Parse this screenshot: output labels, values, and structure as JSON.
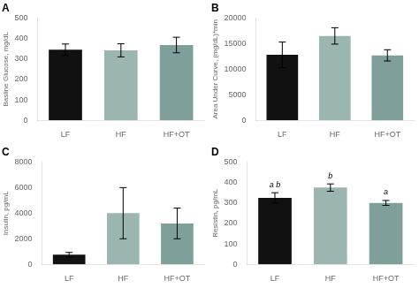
{
  "chart_data": [
    {
      "type": "bar",
      "title": "A",
      "ylabel": "Basline Glucose, mg/dL",
      "categories": [
        "LF",
        "HF",
        "HF+OT"
      ],
      "values": [
        345,
        342,
        368
      ],
      "errors": [
        28,
        32,
        38
      ],
      "colors": [
        "#111111",
        "#9bb5b0",
        "#7fa09a"
      ],
      "ylim": [
        0,
        500
      ],
      "yticks": [
        0,
        100,
        200,
        300,
        400,
        500
      ],
      "grid": false
    },
    {
      "type": "bar",
      "title": "B",
      "ylabel": "Area Under Curve, (mg/dL)*min",
      "categories": [
        "LF",
        "HF",
        "HF+OT"
      ],
      "values": [
        12800,
        16500,
        12700
      ],
      "errors": [
        2500,
        1600,
        1100
      ],
      "colors": [
        "#111111",
        "#9bb5b0",
        "#7fa09a"
      ],
      "ylim": [
        0,
        20000
      ],
      "yticks": [
        0,
        5000,
        10000,
        15000,
        20000
      ],
      "grid": false
    },
    {
      "type": "bar",
      "title": "C",
      "ylabel": "Insulin, pg/mL",
      "categories": [
        "LF",
        "HF",
        "HF+OT"
      ],
      "values": [
        750,
        4000,
        3200
      ],
      "errors": [
        180,
        2000,
        1200
      ],
      "colors": [
        "#111111",
        "#9bb5b0",
        "#7fa09a"
      ],
      "ylim": [
        0,
        8000
      ],
      "yticks": [
        0,
        2000,
        4000,
        6000,
        8000
      ],
      "grid": false
    },
    {
      "type": "bar",
      "title": "D",
      "ylabel": "Resistin, pg/mL",
      "categories": [
        "LF",
        "HF",
        "HF+OT"
      ],
      "values": [
        325,
        375,
        300
      ],
      "errors": [
        25,
        18,
        12
      ],
      "colors": [
        "#111111",
        "#9bb5b0",
        "#7fa09a"
      ],
      "ylim": [
        0,
        500
      ],
      "yticks": [
        0,
        100,
        200,
        300,
        400,
        500
      ],
      "grid": false,
      "annotations": [
        {
          "x": "LF",
          "text": "a b"
        },
        {
          "x": "HF",
          "text": "b"
        },
        {
          "x": "HF+OT",
          "text": "a"
        }
      ]
    }
  ]
}
